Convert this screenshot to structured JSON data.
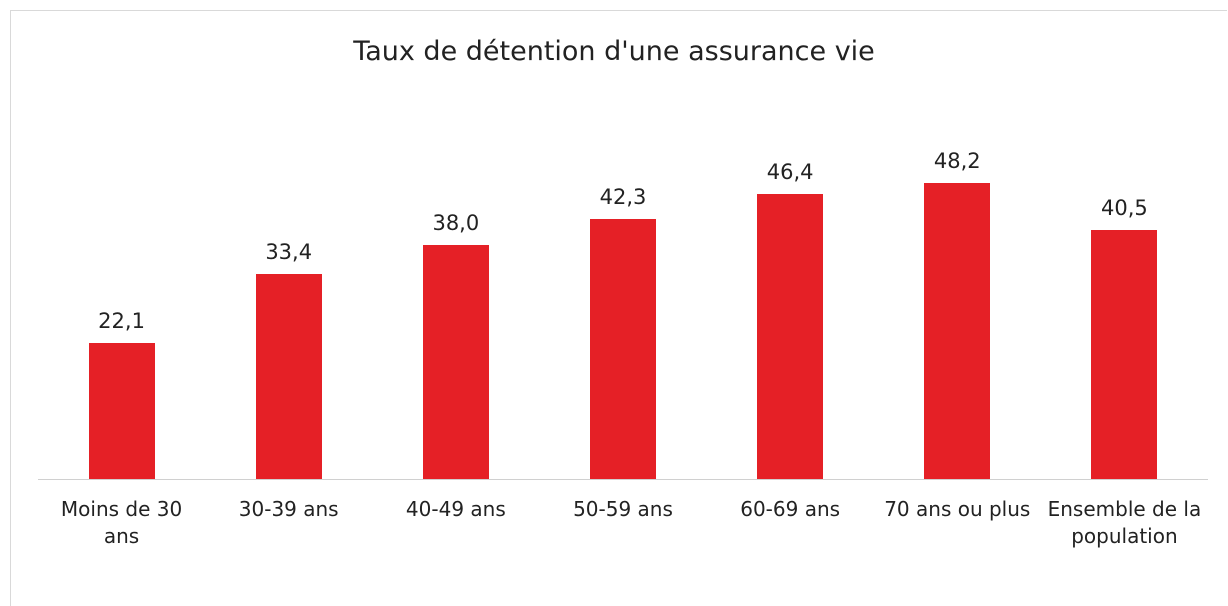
{
  "chart_data": {
    "type": "bar",
    "title": "Taux de détention d'une assurance vie",
    "categories": [
      "Moins de 30 ans",
      "30-39 ans",
      "40-49 ans",
      "50-59 ans",
      "60-69 ans",
      "70 ans ou plus",
      "Ensemble de la population"
    ],
    "values": [
      22.1,
      33.4,
      38.0,
      42.3,
      46.4,
      48.2,
      40.5
    ],
    "value_labels": [
      "22,1",
      "33,4",
      "38,0",
      "42,3",
      "46,4",
      "48,2",
      "40,5"
    ],
    "color": "#e52026",
    "ylim": [
      0,
      60
    ]
  }
}
